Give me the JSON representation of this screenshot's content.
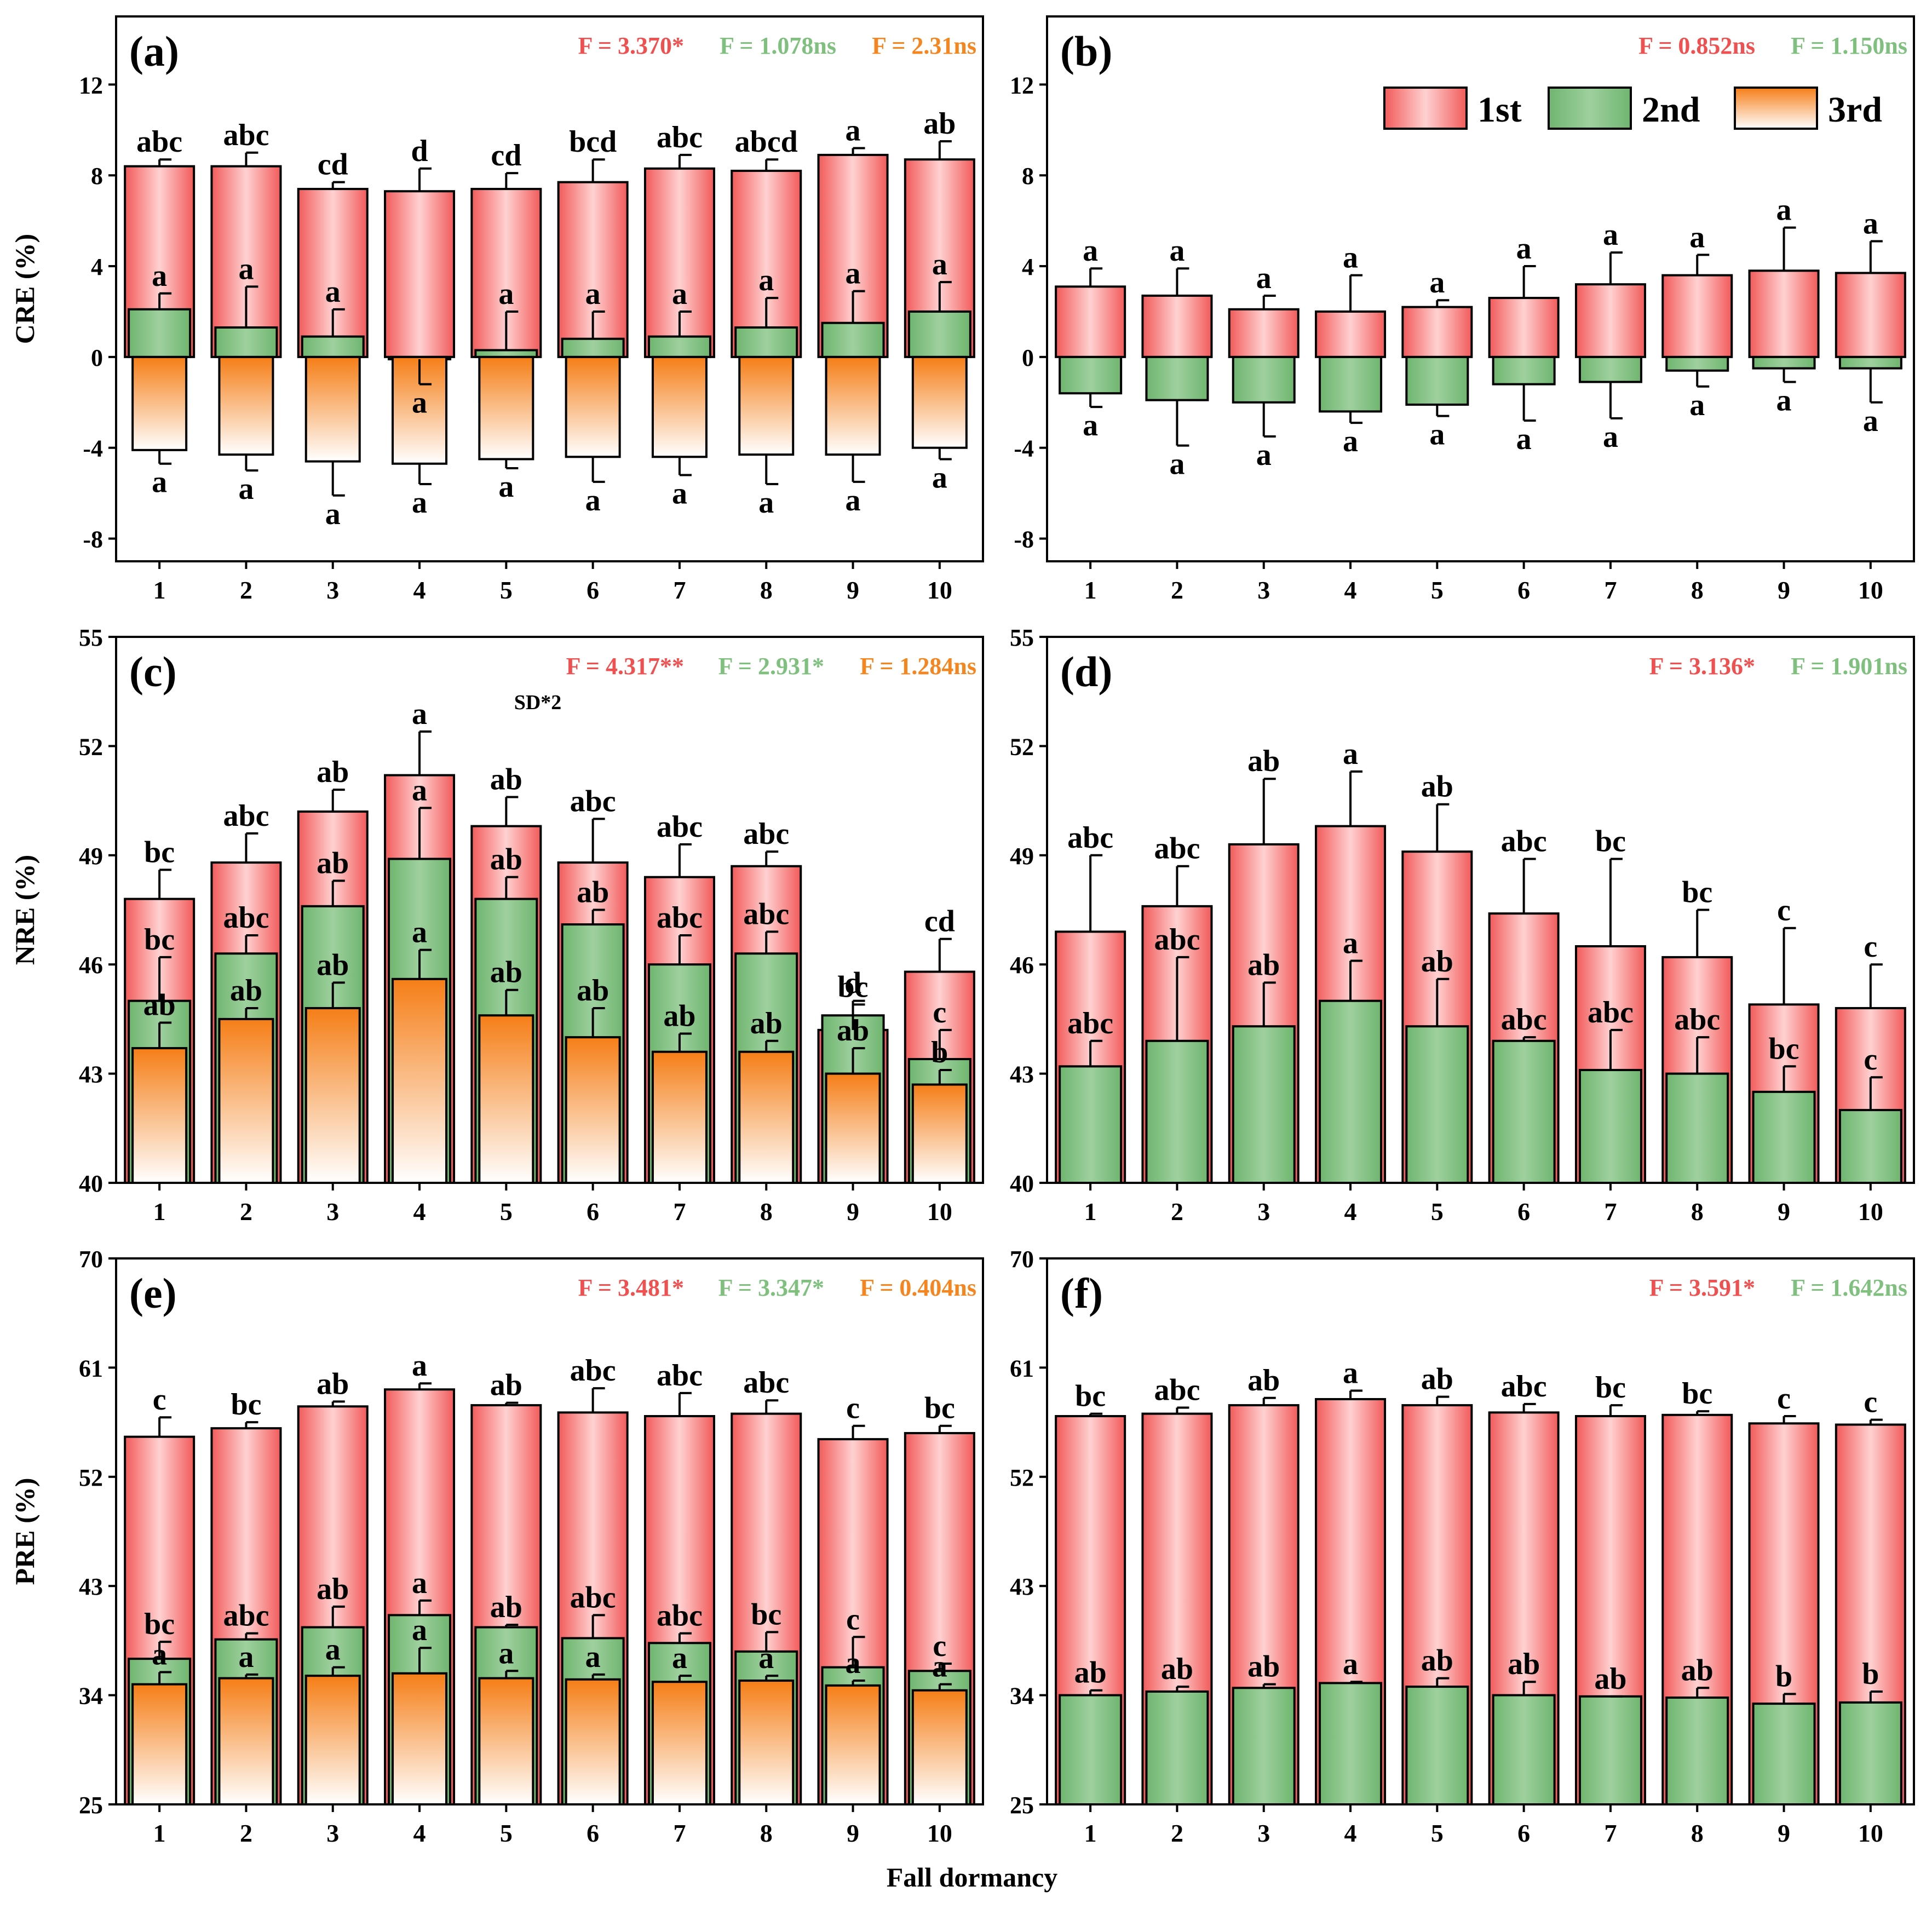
{
  "figure": {
    "xlabel": "Fall dormancy",
    "legend": [
      "1st",
      "2nd",
      "3rd"
    ]
  },
  "colors": {
    "first_top": "#ffffff",
    "first_bottom": "#f25a5a",
    "first_mid": "#ffd1d1",
    "second": "#6fb56f",
    "second_light": "#9ed09e",
    "third_top": "#f57e17",
    "third_bottom": "#ffffff"
  },
  "chart_data": [
    {
      "id": "a",
      "panel_label": "(a)",
      "type": "bar",
      "ylabel": "CRE (%)",
      "ylim": [
        -9,
        15
      ],
      "yticks": [
        -8,
        -4,
        0,
        4,
        8,
        12
      ],
      "categories": [
        "1",
        "2",
        "3",
        "4",
        "5",
        "6",
        "7",
        "8",
        "9",
        "10"
      ],
      "stats": [
        {
          "text": "F = 3.370*",
          "color": "#f05050"
        },
        {
          "text": "F = 1.078ns",
          "color": "#7fc07f"
        },
        {
          "text": "F = 2.31ns",
          "color": "#f5861f"
        }
      ],
      "series": [
        {
          "name": "1st",
          "values": [
            8.4,
            8.4,
            7.4,
            7.3,
            7.4,
            7.7,
            8.3,
            8.2,
            8.9,
            8.7
          ],
          "errors": [
            0.3,
            0.6,
            0.3,
            1.0,
            0.7,
            1.0,
            0.6,
            0.5,
            0.3,
            0.8
          ],
          "letters": [
            "abc",
            "abc",
            "cd",
            "d",
            "cd",
            "bcd",
            "abc",
            "abcd",
            "a",
            "ab"
          ]
        },
        {
          "name": "2nd",
          "values": [
            2.1,
            1.3,
            0.9,
            -0.1,
            0.3,
            0.8,
            0.9,
            1.3,
            1.5,
            2.0
          ],
          "errors": [
            0.7,
            1.8,
            1.2,
            1.1,
            1.7,
            1.2,
            1.1,
            1.3,
            1.4,
            1.3
          ],
          "letters": [
            "a",
            "a",
            "a",
            "a",
            "a",
            "a",
            "a",
            "a",
            "a",
            "a"
          ]
        },
        {
          "name": "3rd",
          "values": [
            -4.1,
            -4.3,
            -4.6,
            -4.7,
            -4.5,
            -4.4,
            -4.4,
            -4.3,
            -4.3,
            -4.0
          ],
          "errors": [
            0.6,
            0.7,
            1.5,
            0.9,
            0.4,
            1.1,
            0.8,
            1.3,
            1.2,
            0.5
          ],
          "letters": [
            "a",
            "a",
            "a",
            "a",
            "a",
            "a",
            "a",
            "a",
            "a",
            "a"
          ]
        }
      ]
    },
    {
      "id": "b",
      "panel_label": "(b)",
      "type": "bar",
      "ylabel": "",
      "ylim": [
        -9,
        15
      ],
      "yticks": [
        -8,
        -4,
        0,
        4,
        8,
        12
      ],
      "categories": [
        "1",
        "2",
        "3",
        "4",
        "5",
        "6",
        "7",
        "8",
        "9",
        "10"
      ],
      "stats": [
        {
          "text": "F = 0.852ns",
          "color": "#f05050"
        },
        {
          "text": "F = 1.150ns",
          "color": "#7fc07f"
        }
      ],
      "series": [
        {
          "name": "1st",
          "values": [
            3.1,
            2.7,
            2.1,
            2.0,
            2.2,
            2.6,
            3.2,
            3.6,
            3.8,
            3.7
          ],
          "errors": [
            0.8,
            1.2,
            0.6,
            1.6,
            0.3,
            1.4,
            1.4,
            0.9,
            1.9,
            1.4
          ],
          "letters": [
            "a",
            "a",
            "a",
            "a",
            "a",
            "a",
            "a",
            "a",
            "a",
            "a"
          ]
        },
        {
          "name": "2nd",
          "values": [
            -1.6,
            -1.9,
            -2.0,
            -2.4,
            -2.1,
            -1.2,
            -1.1,
            -0.6,
            -0.5,
            -0.5
          ],
          "errors": [
            0.6,
            2.0,
            1.5,
            0.5,
            0.5,
            1.6,
            1.6,
            0.7,
            0.6,
            1.5
          ],
          "letters": [
            "a",
            "a",
            "a",
            "a",
            "a",
            "a",
            "a",
            "a",
            "a",
            "a"
          ]
        }
      ]
    },
    {
      "id": "c",
      "panel_label": "(c)",
      "type": "bar",
      "ylabel": "NRE (%)",
      "ylim": [
        40,
        55
      ],
      "yticks": [
        40,
        43,
        46,
        49,
        52,
        55
      ],
      "categories": [
        "1",
        "2",
        "3",
        "4",
        "5",
        "6",
        "7",
        "8",
        "9",
        "10"
      ],
      "annotation": "SD*2",
      "stats": [
        {
          "text": "F = 4.317**",
          "color": "#f05050"
        },
        {
          "text": "F = 2.931*",
          "color": "#7fc07f"
        },
        {
          "text": "F = 1.284ns",
          "color": "#f5861f"
        }
      ],
      "series": [
        {
          "name": "1st",
          "values": [
            47.8,
            48.8,
            50.2,
            51.2,
            49.8,
            48.8,
            48.4,
            48.7,
            44.2,
            45.8
          ],
          "errors": [
            0.8,
            0.8,
            0.6,
            1.2,
            0.8,
            1.2,
            0.9,
            0.4,
            0.8,
            0.9
          ],
          "letters": [
            "bc",
            "abc",
            "ab",
            "a",
            "ab",
            "abc",
            "abc",
            "abc",
            "d",
            "cd"
          ]
        },
        {
          "name": "2nd",
          "values": [
            45.0,
            46.3,
            47.6,
            48.9,
            47.8,
            47.1,
            46.0,
            46.3,
            44.6,
            43.4
          ],
          "errors": [
            1.2,
            0.5,
            0.7,
            1.4,
            0.6,
            0.4,
            0.8,
            0.6,
            0.3,
            0.8
          ],
          "letters": [
            "bc",
            "abc",
            "ab",
            "a",
            "ab",
            "ab",
            "abc",
            "abc",
            "bc",
            "c"
          ]
        },
        {
          "name": "3rd",
          "values": [
            43.7,
            44.5,
            44.8,
            45.6,
            44.6,
            44.0,
            43.6,
            43.6,
            43.0,
            42.7
          ],
          "errors": [
            0.7,
            0.3,
            0.7,
            0.8,
            0.7,
            0.8,
            0.5,
            0.3,
            0.7,
            0.4
          ],
          "letters": [
            "ab",
            "ab",
            "ab",
            "a",
            "ab",
            "ab",
            "ab",
            "ab",
            "ab",
            "b"
          ]
        }
      ]
    },
    {
      "id": "d",
      "panel_label": "(d)",
      "type": "bar",
      "ylabel": "",
      "ylim": [
        40,
        55
      ],
      "yticks": [
        40,
        43,
        46,
        49,
        52,
        55
      ],
      "categories": [
        "1",
        "2",
        "3",
        "4",
        "5",
        "6",
        "7",
        "8",
        "9",
        "10"
      ],
      "stats": [
        {
          "text": "F = 3.136*",
          "color": "#f05050"
        },
        {
          "text": "F = 1.901ns",
          "color": "#7fc07f"
        }
      ],
      "series": [
        {
          "name": "1st",
          "values": [
            46.9,
            47.6,
            49.3,
            49.8,
            49.1,
            47.4,
            46.5,
            46.2,
            44.9,
            44.8
          ],
          "errors": [
            2.1,
            1.1,
            1.8,
            1.5,
            1.3,
            1.5,
            2.4,
            1.3,
            2.1,
            1.2
          ],
          "letters": [
            "abc",
            "abc",
            "ab",
            "a",
            "ab",
            "abc",
            "bc",
            "bc",
            "c",
            "c"
          ]
        },
        {
          "name": "2nd",
          "values": [
            43.2,
            43.9,
            44.3,
            45.0,
            44.3,
            43.9,
            43.1,
            43.0,
            42.5,
            42.0
          ],
          "errors": [
            0.7,
            2.3,
            1.2,
            1.1,
            1.3,
            0.1,
            1.1,
            1.0,
            0.7,
            0.9
          ],
          "letters": [
            "abc",
            "abc",
            "ab",
            "a",
            "ab",
            "abc",
            "abc",
            "abc",
            "bc",
            "c"
          ]
        }
      ]
    },
    {
      "id": "e",
      "panel_label": "(e)",
      "type": "bar",
      "ylabel": "PRE (%)",
      "ylim": [
        25,
        70
      ],
      "yticks": [
        25,
        34,
        43,
        52,
        61,
        70
      ],
      "categories": [
        "1",
        "2",
        "3",
        "4",
        "5",
        "6",
        "7",
        "8",
        "9",
        "10"
      ],
      "stats": [
        {
          "text": "F = 3.481*",
          "color": "#f05050"
        },
        {
          "text": "F = 3.347*",
          "color": "#7fc07f"
        },
        {
          "text": "F = 0.404ns",
          "color": "#f5861f"
        }
      ],
      "series": [
        {
          "name": "1st",
          "values": [
            55.3,
            56.0,
            57.8,
            59.2,
            57.9,
            57.3,
            57.0,
            57.2,
            55.1,
            55.6
          ],
          "errors": [
            1.6,
            0.5,
            0.4,
            0.5,
            0.2,
            2.0,
            1.9,
            1.1,
            1.1,
            0.6
          ],
          "letters": [
            "c",
            "bc",
            "ab",
            "a",
            "ab",
            "abc",
            "abc",
            "abc",
            "c",
            "bc"
          ]
        },
        {
          "name": "2nd",
          "values": [
            37.0,
            38.6,
            39.6,
            40.6,
            39.6,
            38.7,
            38.3,
            37.6,
            36.3,
            36.0
          ],
          "errors": [
            1.4,
            0.5,
            1.7,
            1.2,
            0.2,
            1.9,
            0.8,
            1.6,
            2.5,
            0.6
          ],
          "letters": [
            "bc",
            "abc",
            "ab",
            "a",
            "ab",
            "abc",
            "abc",
            "bc",
            "c",
            "c"
          ]
        },
        {
          "name": "3rd",
          "values": [
            34.9,
            35.4,
            35.6,
            35.8,
            35.4,
            35.3,
            35.1,
            35.2,
            34.8,
            34.4
          ],
          "errors": [
            1.0,
            0.3,
            0.7,
            2.1,
            0.6,
            0.4,
            0.5,
            0.4,
            0.4,
            0.5
          ],
          "letters": [
            "a",
            "a",
            "a",
            "a",
            "a",
            "a",
            "a",
            "a",
            "a",
            "a"
          ]
        }
      ]
    },
    {
      "id": "f",
      "panel_label": "(f)",
      "type": "bar",
      "ylabel": "",
      "ylim": [
        25,
        70
      ],
      "yticks": [
        25,
        34,
        43,
        52,
        61,
        70
      ],
      "categories": [
        "1",
        "2",
        "3",
        "4",
        "5",
        "6",
        "7",
        "8",
        "9",
        "10"
      ],
      "stats": [
        {
          "text": "F = 3.591*",
          "color": "#f05050"
        },
        {
          "text": "F = 1.642ns",
          "color": "#7fc07f"
        }
      ],
      "series": [
        {
          "name": "1st",
          "values": [
            57.0,
            57.2,
            57.9,
            58.4,
            57.9,
            57.3,
            57.0,
            57.1,
            56.4,
            56.3
          ],
          "errors": [
            0.2,
            0.5,
            0.6,
            0.7,
            0.7,
            0.7,
            0.9,
            0.3,
            0.6,
            0.4
          ],
          "letters": [
            "bc",
            "abc",
            "ab",
            "a",
            "ab",
            "abc",
            "bc",
            "bc",
            "c",
            "c"
          ]
        },
        {
          "name": "2nd",
          "values": [
            34.0,
            34.3,
            34.6,
            35.0,
            34.7,
            34.0,
            33.9,
            33.8,
            33.3,
            33.4
          ],
          "errors": [
            0.4,
            0.4,
            0.3,
            0.1,
            0.7,
            1.1,
            0.0,
            0.8,
            0.8,
            0.9
          ],
          "letters": [
            "ab",
            "ab",
            "ab",
            "a",
            "ab",
            "ab",
            "ab",
            "ab",
            "b",
            "b"
          ]
        }
      ]
    }
  ]
}
